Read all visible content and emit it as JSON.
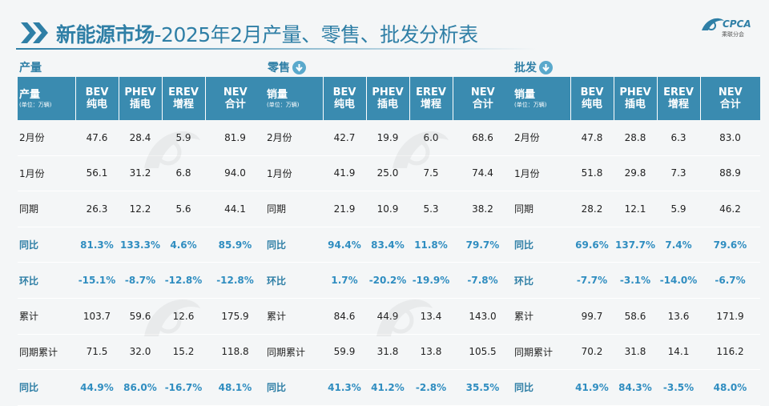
{
  "title": {
    "highlight": "新能源市场",
    "rest": "-2025年2月产量、零售、批发分析表"
  },
  "logo": {
    "text": "CPCA",
    "subtext": "乘联分会"
  },
  "sections": [
    {
      "label": "产量",
      "has_icon": false,
      "header": {
        "first_title": "产量",
        "first_unit": "(单位：万辆)",
        "cols": [
          {
            "top": "BEV",
            "bottom": "纯电"
          },
          {
            "top": "PHEV",
            "bottom": "插电"
          },
          {
            "top": "EREV",
            "bottom": "增程"
          },
          {
            "top": "NEV",
            "bottom": "合计"
          }
        ]
      },
      "rows": [
        {
          "label": "2月份",
          "values": [
            "47.6",
            "28.4",
            "5.9",
            "81.9"
          ],
          "bold": false
        },
        {
          "label": "1月份",
          "values": [
            "56.1",
            "31.2",
            "6.8",
            "94.0"
          ],
          "bold": false
        },
        {
          "label": "同期",
          "values": [
            "26.3",
            "12.2",
            "5.6",
            "44.1"
          ],
          "bold": false
        },
        {
          "label": "同比",
          "values": [
            "81.3%",
            "133.3%",
            "4.6%",
            "85.9%"
          ],
          "bold": true
        },
        {
          "label": "环比",
          "values": [
            "-15.1%",
            "-8.7%",
            "-12.8%",
            "-12.8%"
          ],
          "bold": true
        },
        {
          "label": "累计",
          "values": [
            "103.7",
            "59.6",
            "12.6",
            "175.9"
          ],
          "bold": false
        },
        {
          "label": "同期累计",
          "values": [
            "71.5",
            "32.0",
            "15.2",
            "118.8"
          ],
          "bold": false
        },
        {
          "label": "同比",
          "values": [
            "44.9%",
            "86.0%",
            "-16.7%",
            "48.1%"
          ],
          "bold": true
        }
      ]
    },
    {
      "label": "零售",
      "has_icon": true,
      "header": {
        "first_title": "销量",
        "first_unit": "(单位：万辆)",
        "cols": [
          {
            "top": "BEV",
            "bottom": "纯电"
          },
          {
            "top": "PHEV",
            "bottom": "插电"
          },
          {
            "top": "EREV",
            "bottom": "增程"
          },
          {
            "top": "NEV",
            "bottom": "合计"
          }
        ]
      },
      "rows": [
        {
          "label": "2月份",
          "values": [
            "42.7",
            "19.9",
            "6.0",
            "68.6"
          ],
          "bold": false
        },
        {
          "label": "1月份",
          "values": [
            "41.9",
            "25.0",
            "7.5",
            "74.4"
          ],
          "bold": false
        },
        {
          "label": "同期",
          "values": [
            "21.9",
            "10.9",
            "5.3",
            "38.2"
          ],
          "bold": false
        },
        {
          "label": "同比",
          "values": [
            "94.4%",
            "83.4%",
            "11.8%",
            "79.7%"
          ],
          "bold": true
        },
        {
          "label": "环比",
          "values": [
            "1.7%",
            "-20.2%",
            "-19.9%",
            "-7.8%"
          ],
          "bold": true
        },
        {
          "label": "累计",
          "values": [
            "84.6",
            "44.9",
            "13.4",
            "143.0"
          ],
          "bold": false
        },
        {
          "label": "同期累计",
          "values": [
            "59.9",
            "31.8",
            "13.8",
            "105.5"
          ],
          "bold": false
        },
        {
          "label": "同比",
          "values": [
            "41.3%",
            "41.2%",
            "-2.8%",
            "35.5%"
          ],
          "bold": true
        }
      ]
    },
    {
      "label": "批发",
      "has_icon": true,
      "header": {
        "first_title": "销量",
        "first_unit": "(单位：万辆)",
        "cols": [
          {
            "top": "BEV",
            "bottom": "纯电"
          },
          {
            "top": "PHEV",
            "bottom": "插电"
          },
          {
            "top": "EREV",
            "bottom": "增程"
          },
          {
            "top": "NEV",
            "bottom": "合计"
          }
        ]
      },
      "rows": [
        {
          "label": "2月份",
          "values": [
            "47.8",
            "28.8",
            "6.3",
            "83.0"
          ],
          "bold": false
        },
        {
          "label": "1月份",
          "values": [
            "51.8",
            "29.8",
            "7.3",
            "88.9"
          ],
          "bold": false
        },
        {
          "label": "同期",
          "values": [
            "28.2",
            "12.1",
            "5.9",
            "46.2"
          ],
          "bold": false
        },
        {
          "label": "同比",
          "values": [
            "69.6%",
            "137.7%",
            "7.4%",
            "79.6%"
          ],
          "bold": true
        },
        {
          "label": "环比",
          "values": [
            "-7.7%",
            "-3.1%",
            "-14.0%",
            "-6.7%"
          ],
          "bold": true
        },
        {
          "label": "累计",
          "values": [
            "99.7",
            "58.6",
            "13.6",
            "171.9"
          ],
          "bold": false
        },
        {
          "label": "同期累计",
          "values": [
            "70.2",
            "31.8",
            "14.1",
            "116.2"
          ],
          "bold": false
        },
        {
          "label": "同比",
          "values": [
            "41.9%",
            "84.3%",
            "-3.5%",
            "48.0%"
          ],
          "bold": true
        }
      ]
    }
  ],
  "colors": {
    "accent": "#2f7fa6",
    "header_bg": "#3a8bb0",
    "highlight_text": "#2f8dc0",
    "icon_bg": "#5aa9cc"
  }
}
